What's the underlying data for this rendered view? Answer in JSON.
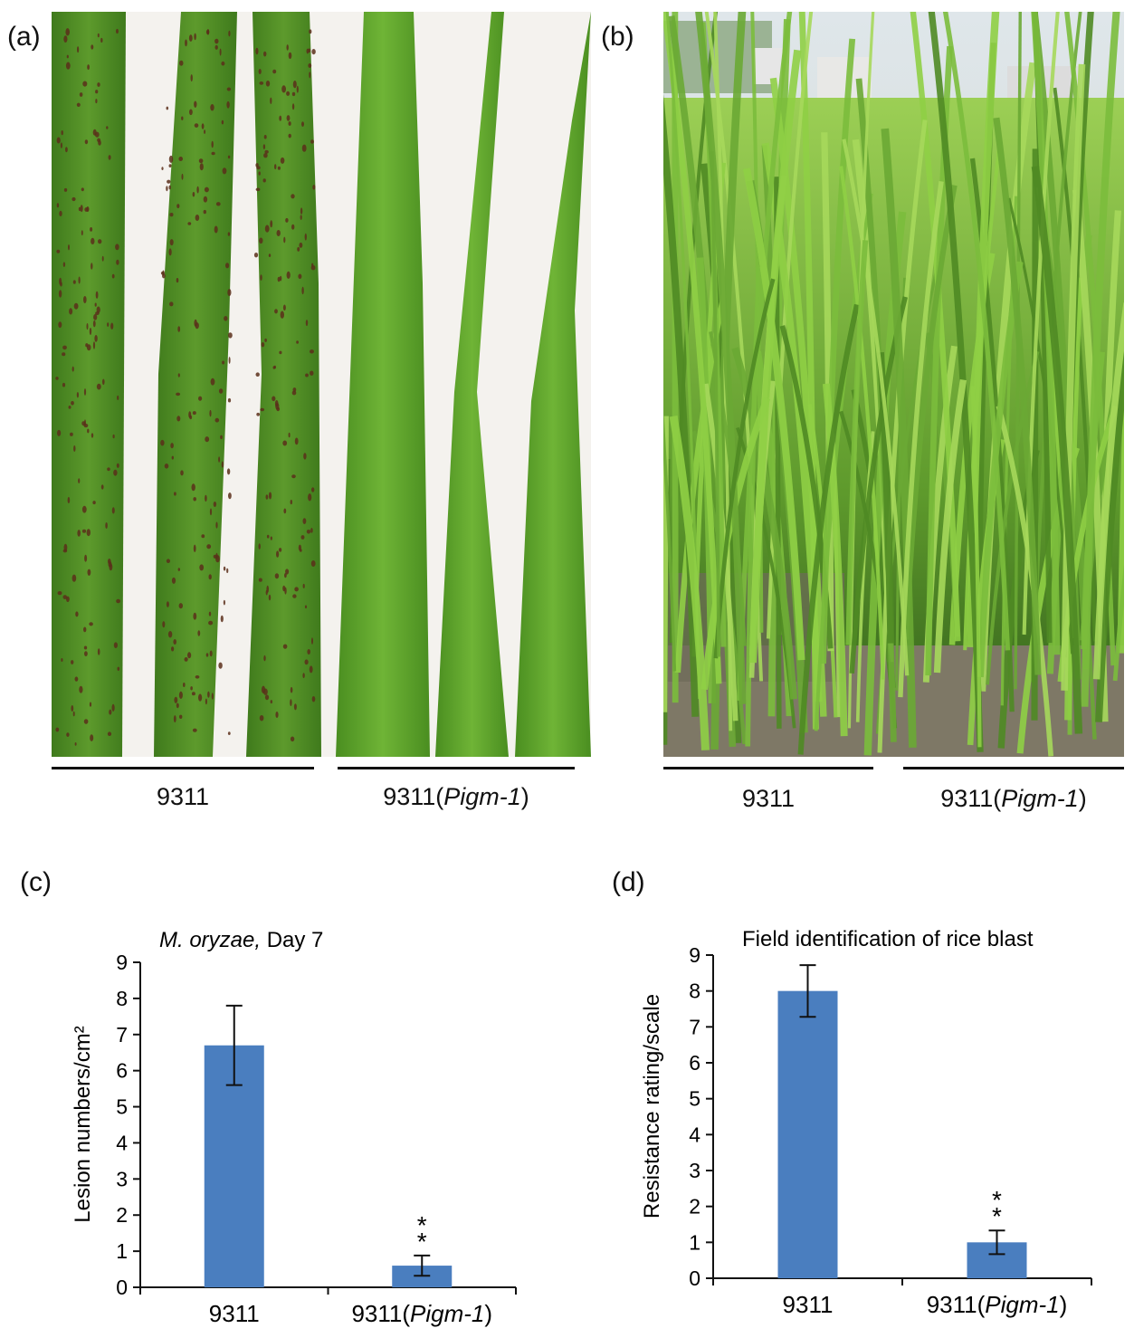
{
  "panels": {
    "a": {
      "label": "(a)",
      "groups": [
        {
          "name": "9311",
          "suffix": ""
        },
        {
          "name": "9311(",
          "italic": "Pigm-1",
          "suffix": ")"
        }
      ]
    },
    "b": {
      "label": "(b)",
      "groups": [
        {
          "name": "9311",
          "suffix": ""
        },
        {
          "name": "9311(",
          "italic": "Pigm-1",
          "suffix": ")"
        }
      ]
    },
    "c": {
      "label": "(c)"
    },
    "d": {
      "label": "(d)"
    }
  },
  "colors": {
    "bar": "#4a7ebf",
    "leaf_dark": "#4f8a22",
    "leaf_light": "#63a72e",
    "lesion": "#5a2f1a",
    "field_green": "#7fbf3a",
    "soil": "#8a8270"
  },
  "chart_data": [
    {
      "type": "bar",
      "title_italic": "M. oryzae,",
      "title_rest": " Day 7",
      "categories": [
        "9311",
        "9311(Pigm-1)"
      ],
      "category_labels": [
        {
          "main": "9311",
          "italic": "",
          "suffix": ""
        },
        {
          "main": "9311(",
          "italic": "Pigm-1",
          "suffix": ")"
        }
      ],
      "values": [
        6.7,
        0.6
      ],
      "errors": [
        1.1,
        0.28
      ],
      "significance": [
        "",
        "**"
      ],
      "ylabel": "Lesion numbers/cm²",
      "ylim": [
        0,
        9
      ],
      "yticks": [
        "0",
        "1",
        "2",
        "3",
        "4",
        "5",
        "6",
        "7",
        "8",
        "9"
      ],
      "grid": false
    },
    {
      "type": "bar",
      "title": "Field identification of rice blast",
      "categories": [
        "9311",
        "9311(Pigm-1)"
      ],
      "category_labels": [
        {
          "main": "9311",
          "italic": "",
          "suffix": ""
        },
        {
          "main": "9311(",
          "italic": "Pigm-1",
          "suffix": ")"
        }
      ],
      "values": [
        8.0,
        1.0
      ],
      "errors": [
        0.72,
        0.33
      ],
      "significance": [
        "",
        "**"
      ],
      "ylabel": "Resistance rating/scale",
      "ylim": [
        0,
        9
      ],
      "yticks": [
        "0",
        "1",
        "2",
        "3",
        "4",
        "5",
        "6",
        "7",
        "8",
        "9"
      ],
      "grid": false
    }
  ]
}
